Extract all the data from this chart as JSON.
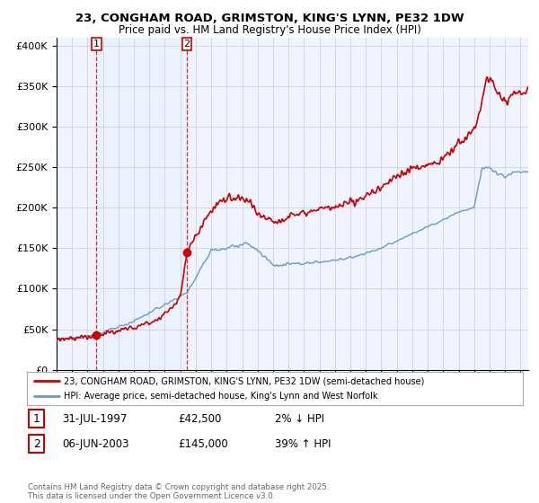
{
  "title": "23, CONGHAM ROAD, GRIMSTON, KING'S LYNN, PE32 1DW",
  "subtitle": "Price paid vs. HM Land Registry's House Price Index (HPI)",
  "legend_line1": "23, CONGHAM ROAD, GRIMSTON, KING'S LYNN, PE32 1DW (semi-detached house)",
  "legend_line2": "HPI: Average price, semi-detached house, King's Lynn and West Norfolk",
  "footer": "Contains HM Land Registry data © Crown copyright and database right 2025.\nThis data is licensed under the Open Government Licence v3.0.",
  "sale1_date": "31-JUL-1997",
  "sale1_price": "£42,500",
  "sale1_hpi": "2% ↓ HPI",
  "sale2_date": "06-JUN-2003",
  "sale2_price": "£145,000",
  "sale2_hpi": "39% ↑ HPI",
  "sale1_year": 1997.58,
  "sale1_value": 42500,
  "sale2_year": 2003.43,
  "sale2_value": 145000,
  "red_line_color": "#cc0000",
  "blue_line_color": "#6699cc",
  "shade_between_color": "#ddeeff",
  "plot_bg_color": "#f0f4ff",
  "grid_color": "#cccccc",
  "ylim": [
    0,
    410000
  ],
  "xlim_start": 1995.0,
  "xlim_end": 2025.5,
  "yticks": [
    0,
    50000,
    100000,
    150000,
    200000,
    250000,
    300000,
    350000,
    400000
  ]
}
